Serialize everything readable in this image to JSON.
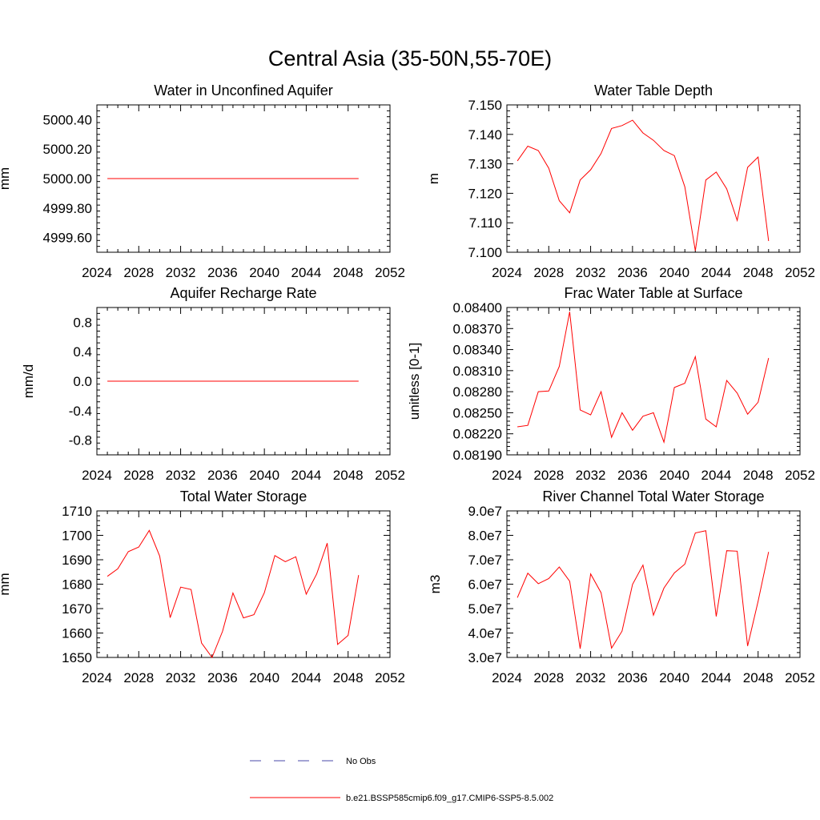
{
  "figure": {
    "title": "Central Asia (35-50N,55-70E)"
  },
  "colors": {
    "model": "#ff0000",
    "obs": "#4a4aa8",
    "axis": "#000000"
  },
  "chart_data": [
    {
      "type": "line",
      "title": "Water in Unconfined Aquifer",
      "ylabel": "mm",
      "xlim": [
        2024,
        2052
      ],
      "xticks": [
        2024,
        2028,
        2032,
        2036,
        2040,
        2044,
        2048,
        2052
      ],
      "ylim": [
        4999.5,
        5000.5
      ],
      "yticks": [
        4999.6,
        4999.8,
        5000.0,
        5000.2,
        5000.4
      ],
      "ytick_labels": [
        "4999.60",
        "4999.80",
        "5000.00",
        "5000.20",
        "5000.40"
      ],
      "x": [
        2025,
        2026,
        2027,
        2028,
        2029,
        2030,
        2031,
        2032,
        2033,
        2034,
        2035,
        2036,
        2037,
        2038,
        2039,
        2040,
        2041,
        2042,
        2043,
        2044,
        2045,
        2046,
        2047,
        2048,
        2049
      ],
      "series": [
        {
          "name": "b.e21.BSSP585cmip6.f09_g17.CMIP6-SSP5-8.5.002",
          "values": [
            5000,
            5000,
            5000,
            5000,
            5000,
            5000,
            5000,
            5000,
            5000,
            5000,
            5000,
            5000,
            5000,
            5000,
            5000,
            5000,
            5000,
            5000,
            5000,
            5000,
            5000,
            5000,
            5000,
            5000,
            5000
          ]
        }
      ]
    },
    {
      "type": "line",
      "title": "Water Table Depth",
      "ylabel": "m",
      "xlim": [
        2024,
        2052
      ],
      "xticks": [
        2024,
        2028,
        2032,
        2036,
        2040,
        2044,
        2048,
        2052
      ],
      "ylim": [
        7.1,
        7.15
      ],
      "yticks": [
        7.1,
        7.11,
        7.12,
        7.13,
        7.14,
        7.15
      ],
      "ytick_labels": [
        "7.100",
        "7.110",
        "7.120",
        "7.130",
        "7.140",
        "7.150"
      ],
      "x": [
        2025,
        2026,
        2027,
        2028,
        2029,
        2030,
        2031,
        2032,
        2033,
        2034,
        2035,
        2036,
        2037,
        2038,
        2039,
        2040,
        2041,
        2042,
        2043,
        2044,
        2045,
        2046,
        2047,
        2048,
        2049
      ],
      "series": [
        {
          "name": "b.e21.BSSP585cmip6.f09_g17.CMIP6-SSP5-8.5.002",
          "values": [
            7.131,
            7.136,
            7.1345,
            7.1285,
            7.1175,
            7.1134,
            7.1245,
            7.128,
            7.1335,
            7.142,
            7.143,
            7.1448,
            7.1405,
            7.138,
            7.1345,
            7.1328,
            7.1222,
            7.1005,
            7.1245,
            7.1272,
            7.1215,
            7.1108,
            7.1288,
            7.1323,
            7.1038
          ]
        }
      ]
    },
    {
      "type": "line",
      "title": "Aquifer Recharge Rate",
      "ylabel": "mm/d",
      "xlim": [
        2024,
        2052
      ],
      "xticks": [
        2024,
        2028,
        2032,
        2036,
        2040,
        2044,
        2048,
        2052
      ],
      "ylim": [
        -1.0,
        1.0
      ],
      "yticks": [
        -0.8,
        -0.4,
        0.0,
        0.4,
        0.8
      ],
      "ytick_labels": [
        "-0.8",
        "-0.4",
        "0.0",
        "0.4",
        "0.8"
      ],
      "x": [
        2025,
        2026,
        2027,
        2028,
        2029,
        2030,
        2031,
        2032,
        2033,
        2034,
        2035,
        2036,
        2037,
        2038,
        2039,
        2040,
        2041,
        2042,
        2043,
        2044,
        2045,
        2046,
        2047,
        2048,
        2049
      ],
      "series": [
        {
          "name": "b.e21.BSSP585cmip6.f09_g17.CMIP6-SSP5-8.5.002",
          "values": [
            0,
            0,
            0,
            0,
            0,
            0,
            0,
            0,
            0,
            0,
            0,
            0,
            0,
            0,
            0,
            0,
            0,
            0,
            0,
            0,
            0,
            0,
            0,
            0,
            0
          ]
        }
      ]
    },
    {
      "type": "line",
      "title": "Frac Water Table at Surface",
      "ylabel": "unitless [0-1]",
      "xlim": [
        2024,
        2052
      ],
      "xticks": [
        2024,
        2028,
        2032,
        2036,
        2040,
        2044,
        2048,
        2052
      ],
      "ylim": [
        0.0819,
        0.084
      ],
      "yticks": [
        0.0819,
        0.0822,
        0.0825,
        0.0828,
        0.0831,
        0.0834,
        0.0837,
        0.084
      ],
      "ytick_labels": [
        "0.08190",
        "0.08220",
        "0.08250",
        "0.08280",
        "0.08310",
        "0.08340",
        "0.08370",
        "0.08400"
      ],
      "x": [
        2025,
        2026,
        2027,
        2028,
        2029,
        2030,
        2031,
        2032,
        2033,
        2034,
        2035,
        2036,
        2037,
        2038,
        2039,
        2040,
        2041,
        2042,
        2043,
        2044,
        2045,
        2046,
        2047,
        2048,
        2049
      ],
      "series": [
        {
          "name": "b.e21.BSSP585cmip6.f09_g17.CMIP6-SSP5-8.5.002",
          "values": [
            0.0823,
            0.08232,
            0.0828,
            0.08281,
            0.08316,
            0.08394,
            0.08254,
            0.08247,
            0.0828,
            0.08215,
            0.0825,
            0.08225,
            0.08245,
            0.0825,
            0.08208,
            0.08286,
            0.08292,
            0.0833,
            0.08241,
            0.0823,
            0.08296,
            0.08278,
            0.08248,
            0.08265,
            0.08328
          ]
        }
      ]
    },
    {
      "type": "line",
      "title": "Total Water Storage",
      "ylabel": "mm",
      "xlim": [
        2024,
        2052
      ],
      "xticks": [
        2024,
        2028,
        2032,
        2036,
        2040,
        2044,
        2048,
        2052
      ],
      "ylim": [
        1650,
        1710
      ],
      "yticks": [
        1650,
        1660,
        1670,
        1680,
        1690,
        1700,
        1710
      ],
      "ytick_labels": [
        "1650",
        "1660",
        "1670",
        "1680",
        "1690",
        "1700",
        "1710"
      ],
      "x": [
        2025,
        2026,
        2027,
        2028,
        2029,
        2030,
        2031,
        2032,
        2033,
        2034,
        2035,
        2036,
        2037,
        2038,
        2039,
        2040,
        2041,
        2042,
        2043,
        2044,
        2045,
        2046,
        2047,
        2048,
        2049
      ],
      "series": [
        {
          "name": "b.e21.BSSP585cmip6.f09_g17.CMIP6-SSP5-8.5.002",
          "values": [
            1683.2,
            1686.3,
            1693.3,
            1695.2,
            1702.0,
            1691.5,
            1666.3,
            1678.8,
            1677.8,
            1655.9,
            1650.0,
            1660.7,
            1676.4,
            1666.2,
            1667.5,
            1676.5,
            1691.7,
            1689.2,
            1691.2,
            1675.9,
            1684.2,
            1696.8,
            1655.3,
            1659.0,
            1683.7
          ]
        }
      ]
    },
    {
      "type": "line",
      "title": "River Channel Total Water Storage",
      "ylabel": "m3",
      "xlim": [
        2024,
        2052
      ],
      "xticks": [
        2024,
        2028,
        2032,
        2036,
        2040,
        2044,
        2048,
        2052
      ],
      "ylim": [
        30000000,
        90000000
      ],
      "yticks": [
        30000000,
        40000000,
        50000000,
        60000000,
        70000000,
        80000000,
        90000000
      ],
      "ytick_labels": [
        "3.0e7",
        "4.0e7",
        "5.0e7",
        "6.0e7",
        "7.0e7",
        "8.0e7",
        "9.0e7"
      ],
      "x": [
        2025,
        2026,
        2027,
        2028,
        2029,
        2030,
        2031,
        2032,
        2033,
        2034,
        2035,
        2036,
        2037,
        2038,
        2039,
        2040,
        2041,
        2042,
        2043,
        2044,
        2045,
        2046,
        2047,
        2048,
        2049
      ],
      "series": [
        {
          "name": "b.e21.BSSP585cmip6.f09_g17.CMIP6-SSP5-8.5.002",
          "values": [
            54500000,
            64500000,
            60200000,
            62300000,
            67000000,
            61200000,
            33600000,
            64200000,
            56500000,
            33800000,
            40800000,
            59900000,
            67800000,
            47300000,
            58400000,
            64600000,
            68200000,
            81000000,
            81900000,
            46800000,
            73700000,
            73500000,
            34700000,
            53000000,
            73200000
          ]
        }
      ]
    }
  ],
  "legend": {
    "items": [
      {
        "label": "No Obs",
        "style": "dashed",
        "color": "#4a4aa8"
      },
      {
        "label": "b.e21.BSSP585cmip6.f09_g17.CMIP6-SSP5-8.5.002",
        "style": "solid",
        "color": "#ff0000"
      }
    ]
  }
}
